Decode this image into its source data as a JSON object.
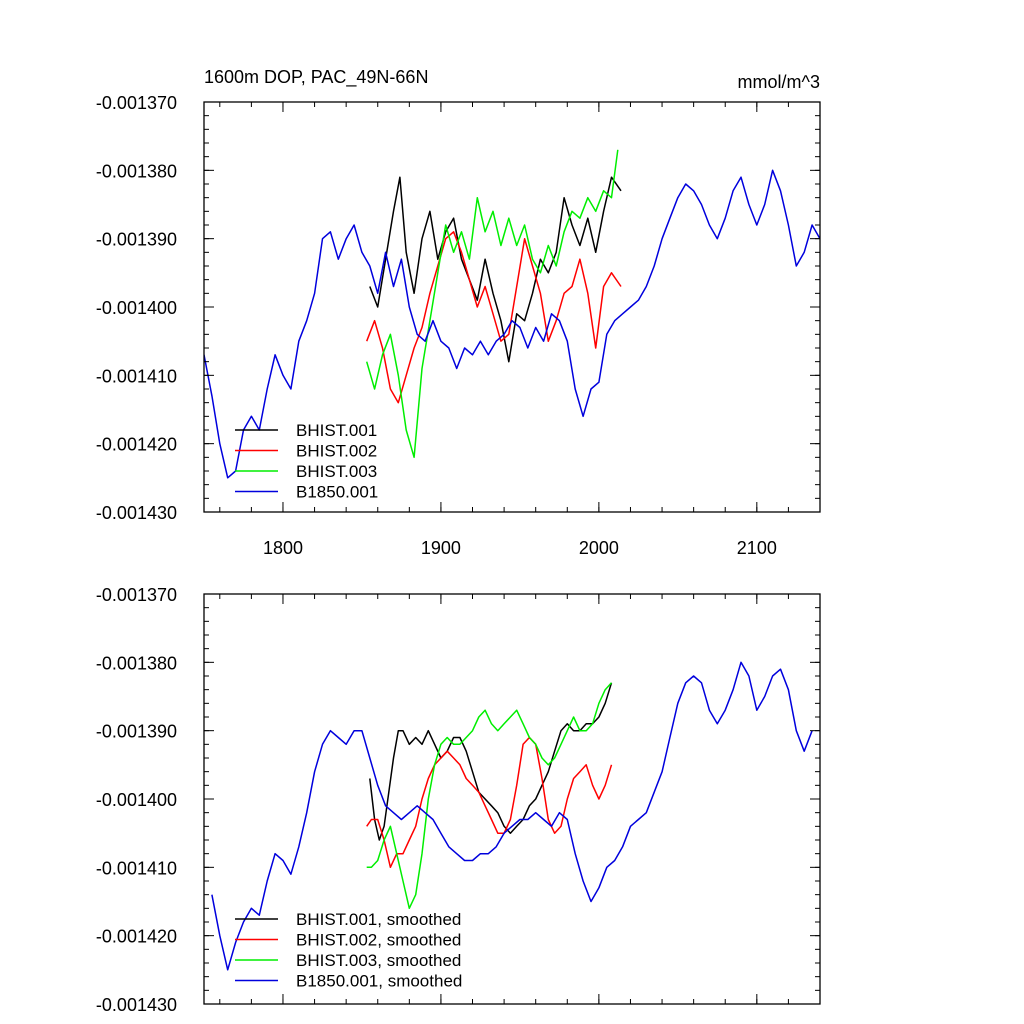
{
  "chart_data": [
    {
      "type": "line",
      "title": "1600m DOP, PAC_49N-66N",
      "units": "mmol/m^3",
      "xlim": [
        1750,
        2140
      ],
      "ylim": [
        -0.00143,
        -0.00137
      ],
      "x_ticks": [
        1800,
        1900,
        2000,
        2100
      ],
      "x_tick_labels": [
        "1800",
        "1900",
        "2000",
        "2100"
      ],
      "y_ticks": [
        -0.00137,
        -0.00138,
        -0.00139,
        -0.0014,
        -0.00141,
        -0.00142,
        -0.00143
      ],
      "y_tick_labels": [
        "-0.001370",
        "-0.001380",
        "-0.001390",
        "-0.001400",
        "-0.001410",
        "-0.001420",
        "-0.001430"
      ],
      "legend": "lower-left",
      "grid": false,
      "series": [
        {
          "name": "BHIST.001",
          "color": "#000000",
          "x": [
            1855,
            1860,
            1865,
            1870,
            1874,
            1878,
            1883,
            1888,
            1893,
            1898,
            1903,
            1908,
            1913,
            1918,
            1923,
            1928,
            1933,
            1938,
            1943,
            1948,
            1953,
            1958,
            1963,
            1968,
            1973,
            1978,
            1983,
            1988,
            1993,
            1998,
            2003,
            2008,
            2014
          ],
          "y": [
            -0.001397,
            -0.0014,
            -0.001393,
            -0.001386,
            -0.001381,
            -0.001392,
            -0.001398,
            -0.00139,
            -0.001386,
            -0.001393,
            -0.001389,
            -0.001387,
            -0.001393,
            -0.001396,
            -0.001399,
            -0.001393,
            -0.001398,
            -0.001402,
            -0.001408,
            -0.001401,
            -0.001402,
            -0.001398,
            -0.001393,
            -0.001395,
            -0.001392,
            -0.001384,
            -0.001388,
            -0.001391,
            -0.001387,
            -0.001392,
            -0.001386,
            -0.001381,
            -0.001383
          ]
        },
        {
          "name": "BHIST.002",
          "color": "#ff0000",
          "x": [
            1853,
            1858,
            1863,
            1868,
            1873,
            1878,
            1883,
            1888,
            1893,
            1898,
            1903,
            1908,
            1913,
            1918,
            1923,
            1928,
            1933,
            1938,
            1943,
            1948,
            1953,
            1958,
            1963,
            1968,
            1973,
            1978,
            1983,
            1988,
            1993,
            1998,
            2003,
            2008,
            2014
          ],
          "y": [
            -0.001405,
            -0.001402,
            -0.001406,
            -0.001412,
            -0.001414,
            -0.00141,
            -0.001406,
            -0.001403,
            -0.001398,
            -0.001394,
            -0.00139,
            -0.001389,
            -0.001392,
            -0.001396,
            -0.0014,
            -0.001397,
            -0.001401,
            -0.001405,
            -0.001404,
            -0.001397,
            -0.00139,
            -0.001394,
            -0.001398,
            -0.001405,
            -0.001402,
            -0.001398,
            -0.001397,
            -0.001393,
            -0.001398,
            -0.001406,
            -0.001397,
            -0.001395,
            -0.001397
          ]
        },
        {
          "name": "BHIST.003",
          "color": "#00ee00",
          "x": [
            1853,
            1858,
            1863,
            1868,
            1873,
            1878,
            1883,
            1888,
            1893,
            1898,
            1903,
            1908,
            1913,
            1918,
            1923,
            1928,
            1933,
            1938,
            1943,
            1948,
            1953,
            1958,
            1963,
            1968,
            1973,
            1978,
            1983,
            1988,
            1993,
            1998,
            2003,
            2008,
            2012
          ],
          "y": [
            -0.001408,
            -0.001412,
            -0.001407,
            -0.001404,
            -0.00141,
            -0.001418,
            -0.001422,
            -0.001409,
            -0.001402,
            -0.001395,
            -0.001388,
            -0.001392,
            -0.001389,
            -0.001393,
            -0.001384,
            -0.001389,
            -0.001386,
            -0.001391,
            -0.001387,
            -0.001391,
            -0.001388,
            -0.001393,
            -0.001395,
            -0.001391,
            -0.001394,
            -0.001389,
            -0.001386,
            -0.001387,
            -0.001384,
            -0.001386,
            -0.001383,
            -0.001384,
            -0.001377
          ]
        },
        {
          "name": "B1850.001",
          "color": "#0000dd",
          "x": [
            1750,
            1755,
            1760,
            1765,
            1770,
            1775,
            1780,
            1785,
            1790,
            1795,
            1800,
            1805,
            1810,
            1815,
            1820,
            1825,
            1830,
            1835,
            1840,
            1845,
            1850,
            1855,
            1860,
            1865,
            1870,
            1875,
            1880,
            1885,
            1890,
            1895,
            1900,
            1905,
            1910,
            1915,
            1920,
            1925,
            1930,
            1935,
            1940,
            1945,
            1950,
            1955,
            1960,
            1965,
            1970,
            1975,
            1980,
            1985,
            1990,
            1995,
            2000,
            2005,
            2010,
            2015,
            2020,
            2025,
            2030,
            2035,
            2040,
            2045,
            2050,
            2055,
            2060,
            2065,
            2070,
            2075,
            2080,
            2085,
            2090,
            2095,
            2100,
            2105,
            2110,
            2115,
            2120,
            2125,
            2130,
            2135,
            2140
          ],
          "y": [
            -0.001407,
            -0.001413,
            -0.00142,
            -0.001425,
            -0.001424,
            -0.001418,
            -0.001416,
            -0.001418,
            -0.001412,
            -0.001407,
            -0.00141,
            -0.001412,
            -0.001405,
            -0.001402,
            -0.001398,
            -0.00139,
            -0.001389,
            -0.001393,
            -0.00139,
            -0.001388,
            -0.001392,
            -0.001394,
            -0.001398,
            -0.001392,
            -0.001397,
            -0.001393,
            -0.0014,
            -0.001404,
            -0.001405,
            -0.001402,
            -0.001405,
            -0.001406,
            -0.001409,
            -0.001406,
            -0.001407,
            -0.001405,
            -0.001407,
            -0.001405,
            -0.001404,
            -0.001402,
            -0.001403,
            -0.001406,
            -0.001403,
            -0.001405,
            -0.001401,
            -0.001402,
            -0.001405,
            -0.001412,
            -0.001416,
            -0.001412,
            -0.001411,
            -0.001404,
            -0.001402,
            -0.001401,
            -0.0014,
            -0.001399,
            -0.001397,
            -0.001394,
            -0.00139,
            -0.001387,
            -0.001384,
            -0.001382,
            -0.001383,
            -0.001385,
            -0.001388,
            -0.00139,
            -0.001387,
            -0.001383,
            -0.001381,
            -0.001385,
            -0.001388,
            -0.001385,
            -0.00138,
            -0.001383,
            -0.001388,
            -0.001394,
            -0.001392,
            -0.001388,
            -0.00139
          ]
        }
      ]
    },
    {
      "type": "line",
      "title": "",
      "units": "",
      "xlim": [
        1750,
        2140
      ],
      "ylim": [
        -0.00143,
        -0.00137
      ],
      "x_ticks": [
        1800,
        1900,
        2000,
        2100
      ],
      "x_tick_labels": [],
      "y_ticks": [
        -0.00137,
        -0.00138,
        -0.00139,
        -0.0014,
        -0.00141,
        -0.00142,
        -0.00143
      ],
      "y_tick_labels": [
        "-0.001370",
        "-0.001380",
        "-0.001390",
        "-0.001400",
        "-0.001410",
        "-0.001420",
        "-0.001430"
      ],
      "legend": "lower-left",
      "grid": false,
      "series": [
        {
          "name": "BHIST.001, smoothed",
          "color": "#000000",
          "x": [
            1855,
            1858,
            1861,
            1864,
            1867,
            1870,
            1873,
            1876,
            1880,
            1884,
            1888,
            1892,
            1896,
            1900,
            1904,
            1908,
            1912,
            1916,
            1920,
            1924,
            1928,
            1932,
            1936,
            1940,
            1944,
            1948,
            1952,
            1956,
            1960,
            1964,
            1968,
            1972,
            1976,
            1980,
            1984,
            1988,
            1992,
            1996,
            2000,
            2004,
            2008
          ],
          "y": [
            -0.001397,
            -0.001403,
            -0.001406,
            -0.001404,
            -0.001399,
            -0.001394,
            -0.00139,
            -0.00139,
            -0.001392,
            -0.001391,
            -0.001392,
            -0.00139,
            -0.001392,
            -0.001394,
            -0.001393,
            -0.001391,
            -0.001391,
            -0.001393,
            -0.001396,
            -0.001399,
            -0.0014,
            -0.001401,
            -0.001402,
            -0.001404,
            -0.001405,
            -0.001404,
            -0.001403,
            -0.001401,
            -0.0014,
            -0.001398,
            -0.001396,
            -0.001393,
            -0.00139,
            -0.001389,
            -0.00139,
            -0.00139,
            -0.001389,
            -0.001389,
            -0.001388,
            -0.001386,
            -0.001383
          ]
        },
        {
          "name": "BHIST.002, smoothed",
          "color": "#ff0000",
          "x": [
            1853,
            1856,
            1860,
            1864,
            1868,
            1872,
            1876,
            1880,
            1884,
            1888,
            1892,
            1896,
            1900,
            1904,
            1908,
            1912,
            1916,
            1920,
            1924,
            1928,
            1932,
            1936,
            1940,
            1944,
            1948,
            1952,
            1956,
            1960,
            1964,
            1968,
            1972,
            1976,
            1980,
            1984,
            1988,
            1992,
            1996,
            2000,
            2004,
            2008
          ],
          "y": [
            -0.001404,
            -0.001403,
            -0.001403,
            -0.001406,
            -0.00141,
            -0.001408,
            -0.001408,
            -0.001406,
            -0.001404,
            -0.0014,
            -0.001397,
            -0.001395,
            -0.001394,
            -0.001393,
            -0.001394,
            -0.001395,
            -0.001397,
            -0.001398,
            -0.001399,
            -0.001401,
            -0.001403,
            -0.001405,
            -0.001405,
            -0.001403,
            -0.001398,
            -0.001392,
            -0.001391,
            -0.001392,
            -0.001397,
            -0.001403,
            -0.001405,
            -0.001404,
            -0.0014,
            -0.001397,
            -0.001396,
            -0.001395,
            -0.001398,
            -0.0014,
            -0.001398,
            -0.001395
          ]
        },
        {
          "name": "BHIST.003, smoothed",
          "color": "#00ee00",
          "x": [
            1853,
            1856,
            1860,
            1864,
            1868,
            1872,
            1876,
            1880,
            1884,
            1888,
            1892,
            1896,
            1900,
            1904,
            1908,
            1912,
            1916,
            1920,
            1924,
            1928,
            1932,
            1936,
            1940,
            1944,
            1948,
            1952,
            1956,
            1960,
            1964,
            1968,
            1972,
            1976,
            1980,
            1984,
            1988,
            1992,
            1996,
            2000,
            2004,
            2008
          ],
          "y": [
            -0.00141,
            -0.00141,
            -0.001409,
            -0.001406,
            -0.001404,
            -0.001408,
            -0.001412,
            -0.001416,
            -0.001414,
            -0.001408,
            -0.0014,
            -0.001395,
            -0.001392,
            -0.001391,
            -0.001392,
            -0.001392,
            -0.001391,
            -0.00139,
            -0.001388,
            -0.001387,
            -0.001389,
            -0.00139,
            -0.001389,
            -0.001388,
            -0.001387,
            -0.001389,
            -0.001391,
            -0.001392,
            -0.001394,
            -0.001395,
            -0.001394,
            -0.001392,
            -0.00139,
            -0.001388,
            -0.00139,
            -0.00139,
            -0.001389,
            -0.001386,
            -0.001384,
            -0.001383
          ]
        },
        {
          "name": "B1850.001, smoothed",
          "color": "#0000dd",
          "x": [
            1755,
            1760,
            1765,
            1770,
            1775,
            1780,
            1785,
            1790,
            1795,
            1800,
            1805,
            1810,
            1815,
            1820,
            1825,
            1830,
            1835,
            1840,
            1845,
            1850,
            1855,
            1860,
            1865,
            1870,
            1875,
            1880,
            1885,
            1890,
            1895,
            1900,
            1905,
            1910,
            1915,
            1920,
            1925,
            1930,
            1935,
            1940,
            1945,
            1950,
            1955,
            1960,
            1965,
            1970,
            1975,
            1980,
            1985,
            1990,
            1995,
            2000,
            2005,
            2010,
            2015,
            2020,
            2025,
            2030,
            2035,
            2040,
            2045,
            2050,
            2055,
            2060,
            2065,
            2070,
            2075,
            2080,
            2085,
            2090,
            2095,
            2100,
            2105,
            2110,
            2115,
            2120,
            2125,
            2130,
            2135
          ],
          "y": [
            -0.001414,
            -0.00142,
            -0.001425,
            -0.001421,
            -0.001418,
            -0.001416,
            -0.001417,
            -0.001412,
            -0.001408,
            -0.001409,
            -0.001411,
            -0.001407,
            -0.001402,
            -0.001396,
            -0.001392,
            -0.00139,
            -0.001391,
            -0.001392,
            -0.00139,
            -0.00139,
            -0.001394,
            -0.001398,
            -0.001401,
            -0.001402,
            -0.001403,
            -0.001402,
            -0.001401,
            -0.001402,
            -0.001403,
            -0.001405,
            -0.001407,
            -0.001408,
            -0.001409,
            -0.001409,
            -0.001408,
            -0.001408,
            -0.001407,
            -0.001405,
            -0.001404,
            -0.001403,
            -0.001403,
            -0.001402,
            -0.001403,
            -0.001404,
            -0.001402,
            -0.001403,
            -0.001408,
            -0.001412,
            -0.001415,
            -0.001413,
            -0.00141,
            -0.001409,
            -0.001407,
            -0.001404,
            -0.001403,
            -0.001402,
            -0.001399,
            -0.001396,
            -0.001391,
            -0.001386,
            -0.001383,
            -0.001382,
            -0.001383,
            -0.001387,
            -0.001389,
            -0.001387,
            -0.001384,
            -0.00138,
            -0.001382,
            -0.001387,
            -0.001385,
            -0.001382,
            -0.001381,
            -0.001384,
            -0.00139,
            -0.001393,
            -0.00139
          ]
        }
      ]
    }
  ]
}
